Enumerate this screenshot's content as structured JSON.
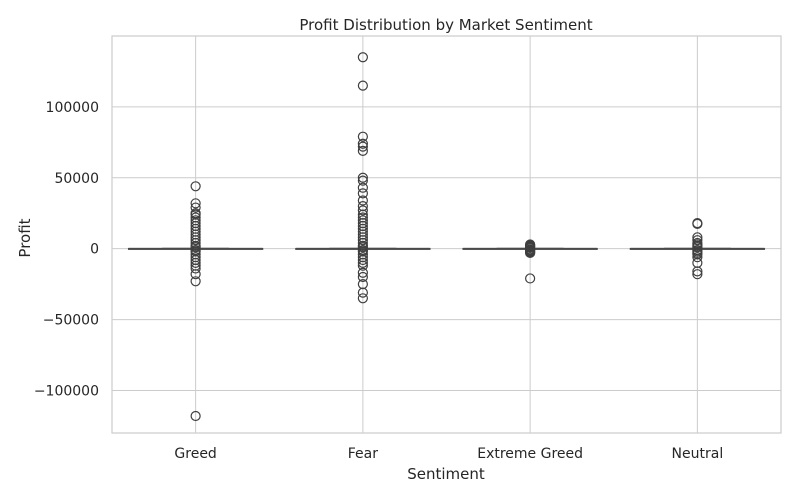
{
  "chart_data": {
    "type": "box",
    "title": "Profit Distribution by Market Sentiment",
    "xlabel": "Sentiment",
    "ylabel": "Profit",
    "ylim": [
      -130000,
      150000
    ],
    "yticks": [
      -100000,
      -50000,
      0,
      50000,
      100000
    ],
    "ytick_labels": [
      "−100000",
      "−50000",
      "0",
      "50000",
      "100000"
    ],
    "grid": true,
    "categories": [
      "Greed",
      "Fear",
      "Extreme Greed",
      "Neutral"
    ],
    "boxes": [
      {
        "category": "Greed",
        "q1": 0,
        "median": 0,
        "q3": 0,
        "whisker_low": 0,
        "whisker_high": 0,
        "outliers": [
          44000,
          32000,
          29000,
          25000,
          24000,
          22000,
          20000,
          18000,
          16000,
          14000,
          12000,
          10000,
          8000,
          6000,
          4000,
          2000,
          1000,
          -1000,
          -2000,
          -4000,
          -6000,
          -8000,
          -10000,
          -12000,
          -14000,
          -18000,
          -23000,
          -118000
        ]
      },
      {
        "category": "Fear",
        "q1": 0,
        "median": 0,
        "q3": 0,
        "whisker_low": 0,
        "whisker_high": 0,
        "outliers": [
          135000,
          115000,
          79000,
          74000,
          72000,
          69000,
          50000,
          48000,
          43000,
          39000,
          34000,
          30000,
          27000,
          24000,
          22000,
          20000,
          18000,
          16000,
          14000,
          12000,
          10000,
          8000,
          6000,
          4000,
          2000,
          1000,
          -1000,
          -2000,
          -4000,
          -6000,
          -8000,
          -10000,
          -12000,
          -17000,
          -20000,
          -25000,
          -31000,
          -35000
        ]
      },
      {
        "category": "Extreme Greed",
        "q1": 0,
        "median": 0,
        "q3": 0,
        "whisker_low": 0,
        "whisker_high": 0,
        "outliers": [
          3000,
          2500,
          2000,
          1500,
          1000,
          500,
          -500,
          -1000,
          -1500,
          -2000,
          -2500,
          -3000,
          -21000
        ]
      },
      {
        "category": "Neutral",
        "q1": 0,
        "median": 0,
        "q3": 0,
        "whisker_low": 0,
        "whisker_high": 0,
        "outliers": [
          18000,
          17500,
          8000,
          6000,
          4000,
          3000,
          2000,
          1000,
          -1000,
          -2000,
          -3000,
          -4000,
          -6000,
          -10000,
          -16000,
          -18000
        ]
      }
    ],
    "colors": {
      "box_line": "#4a4a4a",
      "outlier": "#3f3f3f",
      "grid": "#cccccc",
      "text": "#262626"
    }
  }
}
